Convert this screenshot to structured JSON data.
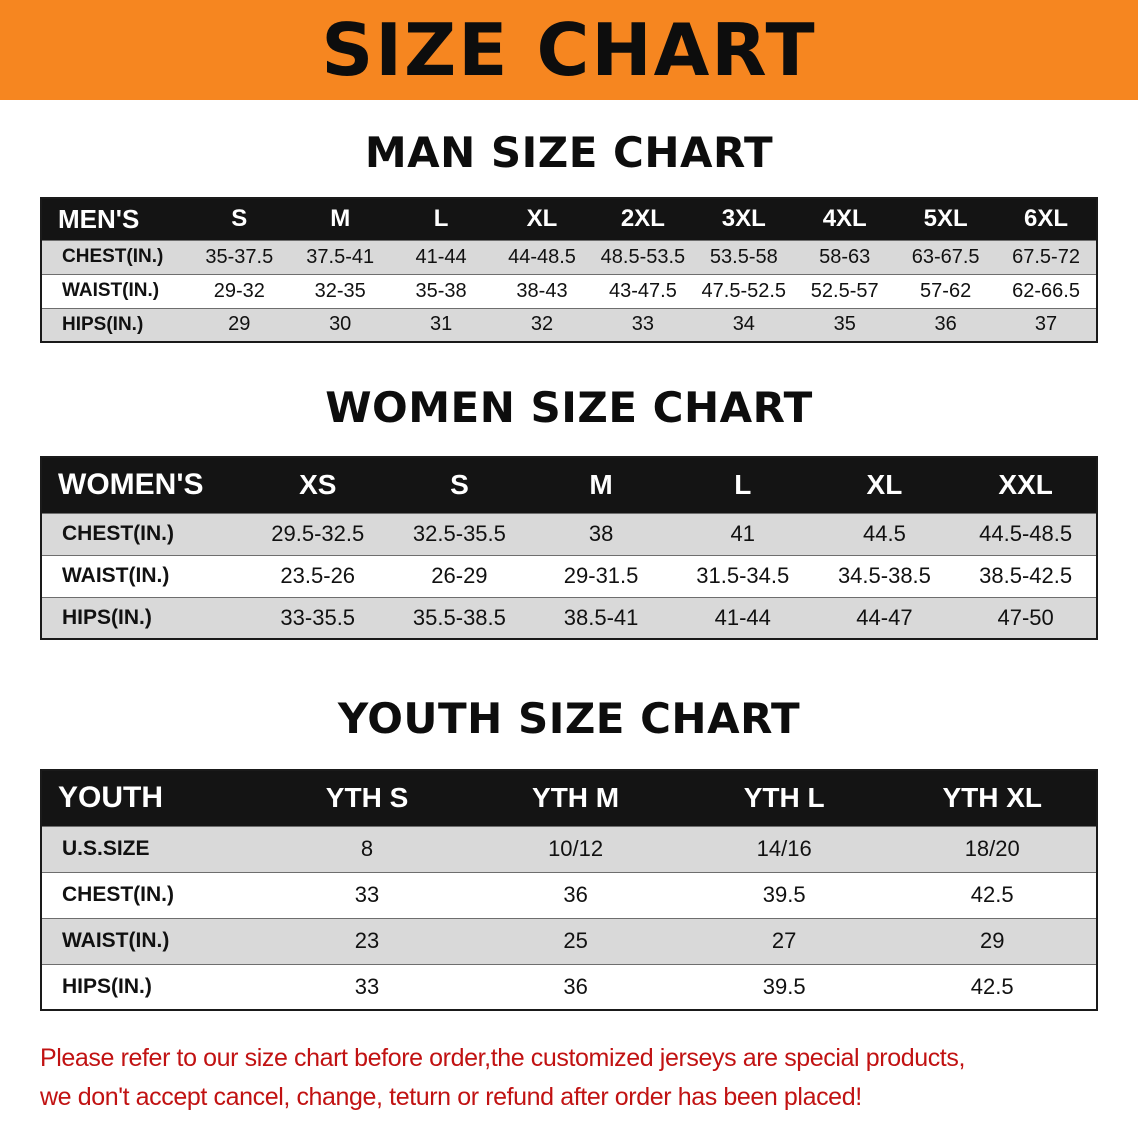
{
  "banner": {
    "title": "SIZE CHART"
  },
  "colors": {
    "banner_bg": "#f68620",
    "banner_text": "#0d0d0d",
    "table_header_bg": "#141414",
    "table_header_text": "#ffffff",
    "row_stripe": "#d9d9d9",
    "notice_text": "#c11212"
  },
  "sections": [
    {
      "id": "men",
      "title": "MAN SIZE CHART",
      "header": [
        "MEN'S",
        "S",
        "M",
        "L",
        "XL",
        "2XL",
        "3XL",
        "4XL",
        "5XL",
        "6XL"
      ],
      "rows": [
        [
          "CHEST(IN.)",
          "35-37.5",
          "37.5-41",
          "41-44",
          "44-48.5",
          "48.5-53.5",
          "53.5-58",
          "58-63",
          "63-67.5",
          "67.5-72"
        ],
        [
          "WAIST(IN.)",
          "29-32",
          "32-35",
          "35-38",
          "38-43",
          "43-47.5",
          "47.5-52.5",
          "52.5-57",
          "57-62",
          "62-66.5"
        ],
        [
          "HIPS(IN.)",
          "29",
          "30",
          "31",
          "32",
          "33",
          "34",
          "35",
          "36",
          "37"
        ]
      ]
    },
    {
      "id": "women",
      "title": "WOMEN SIZE CHART",
      "header": [
        "WOMEN'S",
        "XS",
        "S",
        "M",
        "L",
        "XL",
        "XXL"
      ],
      "rows": [
        [
          "CHEST(IN.)",
          "29.5-32.5",
          "32.5-35.5",
          "38",
          "41",
          "44.5",
          "44.5-48.5"
        ],
        [
          "WAIST(IN.)",
          "23.5-26",
          "26-29",
          "29-31.5",
          "31.5-34.5",
          "34.5-38.5",
          "38.5-42.5"
        ],
        [
          "HIPS(IN.)",
          "33-35.5",
          "35.5-38.5",
          "38.5-41",
          "41-44",
          "44-47",
          "47-50"
        ]
      ]
    },
    {
      "id": "youth",
      "title": "YOUTH SIZE CHART",
      "header": [
        "YOUTH",
        "YTH S",
        "YTH M",
        "YTH L",
        "YTH XL"
      ],
      "rows": [
        [
          "U.S.SIZE",
          "8",
          "10/12",
          "14/16",
          "18/20"
        ],
        [
          "CHEST(IN.)",
          "33",
          "36",
          "39.5",
          "42.5"
        ],
        [
          "WAIST(IN.)",
          "23",
          "25",
          "27",
          "29"
        ],
        [
          "HIPS(IN.)",
          "33",
          "36",
          "39.5",
          "42.5"
        ]
      ]
    }
  ],
  "footer": {
    "lines": [
      "Please refer to our size chart before order,the customized jerseys are special products,",
      "we don't accept cancel, change, teturn or refund after order has been placed!"
    ]
  }
}
